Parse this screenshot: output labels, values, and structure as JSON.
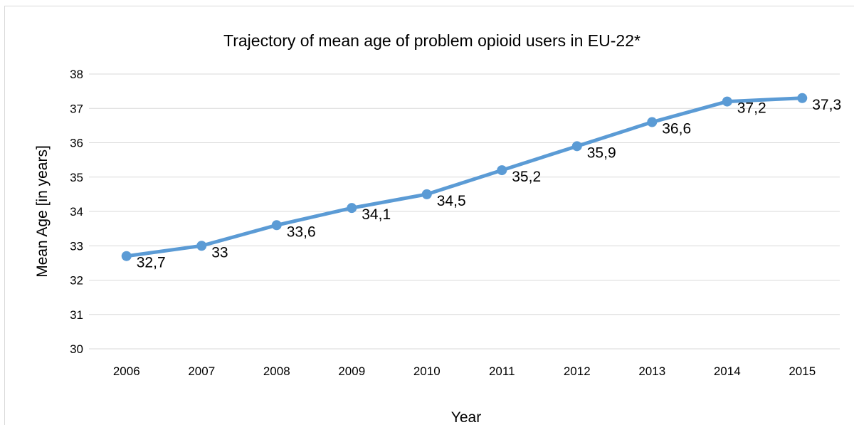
{
  "colors": {
    "series": "#5b9bd5",
    "grid": "#d9d9d9",
    "text": "#000000"
  },
  "chart_data": {
    "type": "line",
    "title": "Trajectory of mean age of problem opioid users in EU-22*",
    "xlabel": "Year",
    "ylabel": "Mean Age [in years]",
    "ylim": [
      30,
      38
    ],
    "yticks": [
      "30",
      "31",
      "32",
      "33",
      "34",
      "35",
      "36",
      "37",
      "38"
    ],
    "grid": true,
    "legend": "none",
    "categories": [
      "2006",
      "2007",
      "2008",
      "2009",
      "2010",
      "2011",
      "2012",
      "2013",
      "2014",
      "2015"
    ],
    "values": [
      32.7,
      33,
      33.6,
      34.1,
      34.5,
      35.2,
      35.9,
      36.6,
      37.2,
      37.3
    ],
    "data_labels": [
      "32,7",
      "33",
      "33,6",
      "34,1",
      "34,5",
      "35,2",
      "35,9",
      "36,6",
      "37,2",
      "37,3"
    ]
  }
}
